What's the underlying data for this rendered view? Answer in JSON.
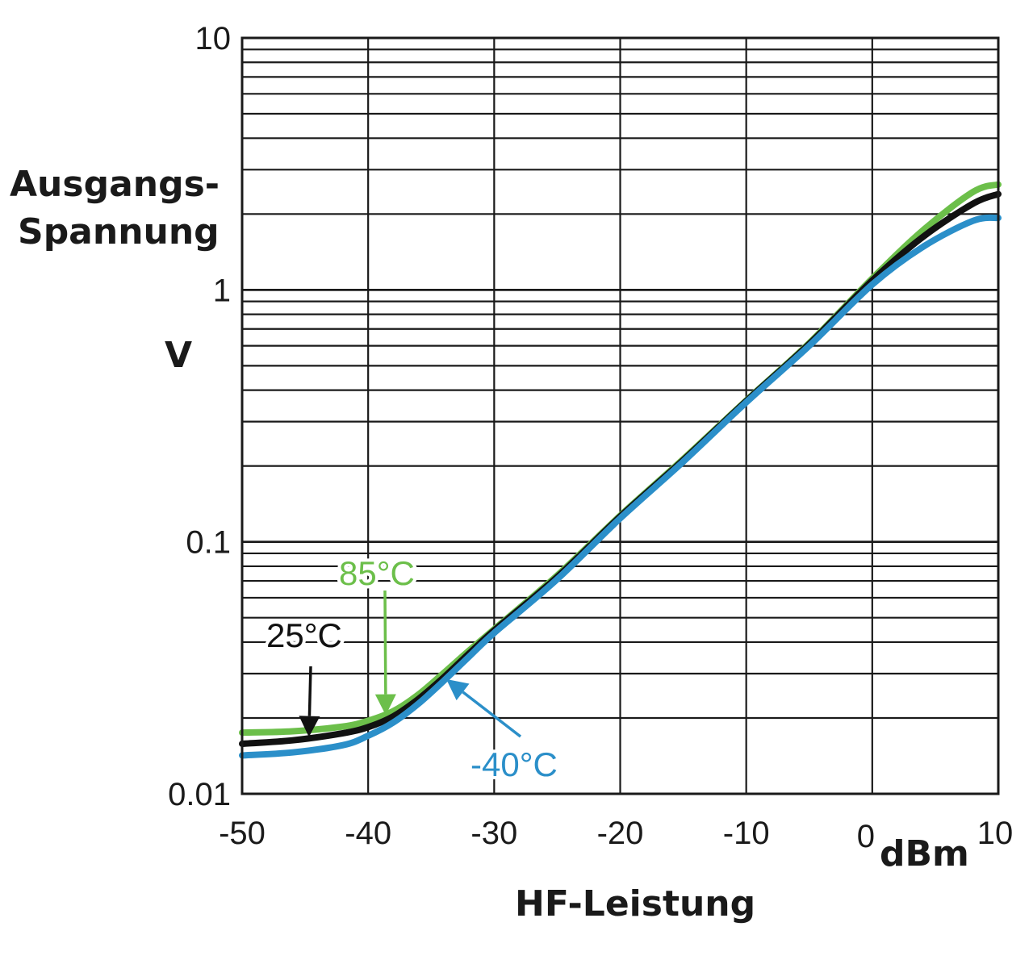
{
  "chart_data": {
    "type": "line",
    "ylabel": [
      "Ausgangs-",
      "Spannung"
    ],
    "yunit": "V",
    "xlabel": "HF-Leistung",
    "xunit": "dBm",
    "xlim": [
      -50,
      10
    ],
    "ylim": [
      0.01,
      10
    ],
    "yscale": "log",
    "grid": true,
    "x_ticks": [
      "-50",
      "-40",
      "-30",
      "-20",
      "-10",
      "0",
      "10"
    ],
    "x_tick_values": [
      -50,
      -40,
      -30,
      -20,
      -10,
      0,
      10
    ],
    "y_ticks": [
      "0.01",
      "0.1",
      "1",
      "10"
    ],
    "y_tick_values": [
      0.01,
      0.1,
      1,
      10
    ],
    "series": [
      {
        "name": "85°C",
        "color": "#6cbf4a",
        "x": [
          -50,
          -46,
          -42,
          -40,
          -38,
          -36,
          -34,
          -32,
          -30,
          -25,
          -20,
          -15,
          -10,
          -5,
          0,
          4,
          8,
          10
        ],
        "y": [
          0.0175,
          0.0177,
          0.0185,
          0.0195,
          0.0213,
          0.0248,
          0.0302,
          0.037,
          0.045,
          0.0735,
          0.127,
          0.213,
          0.364,
          0.615,
          1.11,
          1.72,
          2.45,
          2.62
        ]
      },
      {
        "name": "25°C",
        "color": "#111111",
        "x": [
          -50,
          -46,
          -42,
          -40,
          -38,
          -36,
          -34,
          -32,
          -30,
          -25,
          -20,
          -15,
          -10,
          -5,
          0,
          4,
          8,
          10
        ],
        "y": [
          0.0158,
          0.0163,
          0.0174,
          0.0184,
          0.0203,
          0.0238,
          0.029,
          0.036,
          0.0445,
          0.0725,
          0.126,
          0.211,
          0.362,
          0.61,
          1.09,
          1.62,
          2.2,
          2.4
        ]
      },
      {
        "name": "-40°C",
        "color": "#2b8fc9",
        "x": [
          -50,
          -46,
          -42,
          -40,
          -38,
          -36,
          -34,
          -32,
          -30,
          -25,
          -20,
          -15,
          -10,
          -5,
          0,
          4,
          8,
          10
        ],
        "y": [
          0.0142,
          0.0146,
          0.0156,
          0.017,
          0.0192,
          0.0228,
          0.0281,
          0.035,
          0.0435,
          0.071,
          0.124,
          0.208,
          0.358,
          0.6,
          1.05,
          1.48,
          1.88,
          1.93
        ]
      }
    ],
    "annotations": [
      {
        "text": "85°C",
        "color": "#6cbf4a",
        "target_x": -38.6,
        "target_y": 0.0205
      },
      {
        "text": "25°C",
        "color": "#111111",
        "target_x": -44.7,
        "target_y": 0.0168
      },
      {
        "text": "-40°C",
        "color": "#2b8fc9",
        "target_x": -33.8,
        "target_y": 0.0285
      }
    ]
  }
}
